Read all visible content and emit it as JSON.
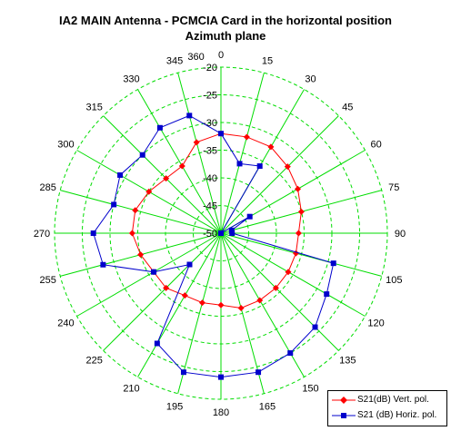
{
  "title_line1": "IA2 MAIN Antenna - PCMCIA Card in the horizontal position",
  "title_line2": "Azimuth plane",
  "chart_data": {
    "type": "polar-line",
    "angle_ticks": [
      "0",
      "15",
      "30",
      "45",
      "60",
      "75",
      "90",
      "105",
      "120",
      "135",
      "150",
      "165",
      "180",
      "195",
      "210",
      "225",
      "240",
      "255",
      "270",
      "285",
      "300",
      "315",
      "330",
      "345",
      "360"
    ],
    "radial_ticks": [
      "-20",
      "-25",
      "-30",
      "-35",
      "-40",
      "-45",
      "-50"
    ],
    "rlim": [
      -50,
      -20
    ],
    "grid": true,
    "legend_position": "bottom-right",
    "colors": {
      "grid": "#00dd00",
      "vert": "#ff0000",
      "horiz": "#0000cc"
    },
    "series": [
      {
        "name": "S21(dB)  Vert. pol.",
        "color": "#ff0000",
        "marker": "diamond",
        "angles": [
          0,
          15,
          30,
          45,
          60,
          75,
          90,
          105,
          120,
          135,
          150,
          165,
          180,
          195,
          210,
          225,
          240,
          255,
          270,
          285,
          300,
          315,
          330,
          345
        ],
        "values": [
          -32,
          -32,
          -32,
          -33,
          -34,
          -35,
          -36,
          -36,
          -36,
          -36,
          -36,
          -36,
          -37,
          -37,
          -37,
          -36,
          -36,
          -35,
          -34,
          -34,
          -35,
          -36,
          -36,
          -33
        ]
      },
      {
        "name": "S21 (dB) Horiz. pol.",
        "color": "#0000cc",
        "marker": "square",
        "angles": [
          0,
          15,
          30,
          45,
          60,
          75,
          90,
          105,
          120,
          135,
          150,
          165,
          180,
          195,
          210,
          225,
          240,
          255,
          270,
          285,
          300,
          315,
          330,
          345
        ],
        "values": [
          -32,
          -37,
          -36,
          -50,
          -44,
          -48,
          -48,
          -29,
          -28,
          -26,
          -25,
          -24,
          -24,
          -24,
          -27,
          -42,
          -36,
          -28,
          -27,
          -30,
          -29,
          -30,
          -28,
          -28
        ]
      }
    ]
  }
}
